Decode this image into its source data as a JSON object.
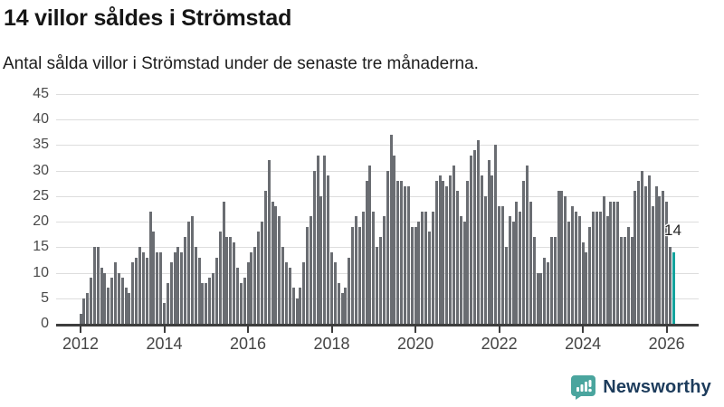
{
  "header": {
    "title": "14 villor såldes i Strömstad",
    "subtitle": "Antal sålda villor i Strömstad under de senaste tre månaderna."
  },
  "annotation": {
    "last_value_label": "14"
  },
  "footer": {
    "brand": "Newsworthy",
    "logo_icon": "bar-chart-speech-bubble-icon"
  },
  "colors": {
    "bar": "#6a6d72",
    "highlight": "#14a39d",
    "gridline": "#dddddd",
    "axis": "#3d3d3d",
    "logo_teal": "#4aa59e",
    "logo_text": "#1d3c5c"
  },
  "chart_data": {
    "type": "bar",
    "title": "14 villor såldes i Strömstad",
    "subtitle": "Antal sålda villor i Strömstad under de senaste tre månaderna.",
    "x_start": "2012-01",
    "frequency": "monthly",
    "ylim": [
      0,
      45
    ],
    "yticks": [
      0,
      5,
      10,
      15,
      20,
      25,
      30,
      35,
      40,
      45
    ],
    "grid": "horizontal",
    "legend": "none",
    "xtick_every_months": 24,
    "xtick_labels": [
      "2012",
      "2014",
      "2016",
      "2018",
      "2020",
      "2022",
      "2024",
      "2026"
    ],
    "highlight_last": true,
    "values": [
      2,
      5,
      6,
      9,
      15,
      15,
      11,
      10,
      7,
      9,
      12,
      10,
      9,
      7,
      6,
      12,
      13,
      15,
      14,
      13,
      22,
      18,
      14,
      14,
      4,
      8,
      12,
      14,
      15,
      14,
      17,
      20,
      21,
      15,
      13,
      8,
      8,
      9,
      10,
      13,
      18,
      24,
      17,
      17,
      16,
      11,
      8,
      9,
      12,
      14,
      15,
      18,
      20,
      26,
      32,
      24,
      23,
      21,
      15,
      12,
      11,
      7,
      5,
      7,
      12,
      19,
      21,
      30,
      33,
      25,
      33,
      29,
      14,
      12,
      8,
      6,
      7,
      13,
      19,
      21,
      19,
      22,
      28,
      31,
      22,
      15,
      17,
      21,
      30,
      37,
      33,
      28,
      28,
      27,
      27,
      19,
      19,
      20,
      22,
      22,
      18,
      22,
      28,
      29,
      28,
      27,
      29,
      31,
      26,
      21,
      20,
      28,
      33,
      34,
      36,
      29,
      25,
      32,
      29,
      35,
      23,
      23,
      15,
      21,
      20,
      24,
      22,
      28,
      31,
      24,
      17,
      10,
      10,
      13,
      12,
      17,
      17,
      26,
      26,
      25,
      20,
      23,
      22,
      21,
      16,
      14,
      19,
      22,
      22,
      22,
      25,
      21,
      24,
      24,
      24,
      17,
      17,
      19,
      17,
      26,
      28,
      30,
      27,
      29,
      23,
      27,
      25,
      26,
      24,
      15,
      14
    ]
  }
}
